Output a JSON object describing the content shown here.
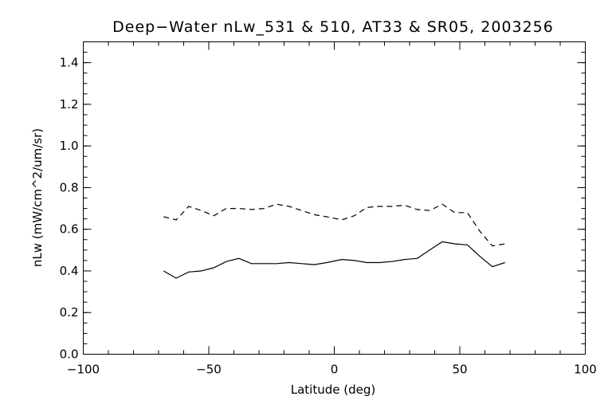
{
  "chart_data": {
    "type": "line",
    "title": "Deep−Water nLw_531 & 510, AT33 & SR05, 2003256",
    "xlabel": "Latitude (deg)",
    "ylabel": "nLw (mW/cm^2/um/sr)",
    "xlim": [
      -100,
      100
    ],
    "ylim": [
      0.0,
      1.5
    ],
    "x_ticks": [
      -100,
      -50,
      0,
      50,
      100
    ],
    "x_tick_labels": [
      "−100",
      "−50",
      "0",
      "50",
      "100"
    ],
    "x_minor_step": 10,
    "y_ticks": [
      0.0,
      0.2,
      0.4,
      0.6,
      0.8,
      1.0,
      1.2,
      1.4
    ],
    "y_tick_labels": [
      "0.0",
      "0.2",
      "0.4",
      "0.6",
      "0.8",
      "1.0",
      "1.2",
      "1.4"
    ],
    "y_minor_step": 0.05,
    "grid": false,
    "series": [
      {
        "line_style": "solid",
        "x": [
          -68,
          -63,
          -58,
          -53,
          -48,
          -43,
          -38,
          -33,
          -28,
          -23,
          -18,
          -13,
          -8,
          -3,
          3,
          8,
          13,
          18,
          23,
          28,
          33,
          38,
          43,
          48,
          53,
          58,
          63,
          68
        ],
        "y": [
          0.4,
          0.365,
          0.395,
          0.4,
          0.415,
          0.445,
          0.46,
          0.435,
          0.435,
          0.435,
          0.44,
          0.435,
          0.43,
          0.44,
          0.455,
          0.45,
          0.44,
          0.44,
          0.445,
          0.455,
          0.46,
          0.5,
          0.54,
          0.53,
          0.525,
          0.47,
          0.42,
          0.44
        ]
      },
      {
        "line_style": "dashed",
        "x": [
          -68,
          -63,
          -58,
          -53,
          -48,
          -43,
          -38,
          -33,
          -28,
          -23,
          -18,
          -13,
          -8,
          -3,
          3,
          8,
          13,
          18,
          23,
          28,
          33,
          38,
          43,
          48,
          53,
          58,
          63,
          68
        ],
        "y": [
          0.66,
          0.645,
          0.71,
          0.69,
          0.665,
          0.7,
          0.7,
          0.695,
          0.7,
          0.72,
          0.71,
          0.69,
          0.67,
          0.66,
          0.645,
          0.665,
          0.705,
          0.71,
          0.71,
          0.715,
          0.695,
          0.69,
          0.72,
          0.68,
          0.68,
          0.59,
          0.52,
          0.53
        ]
      }
    ]
  }
}
